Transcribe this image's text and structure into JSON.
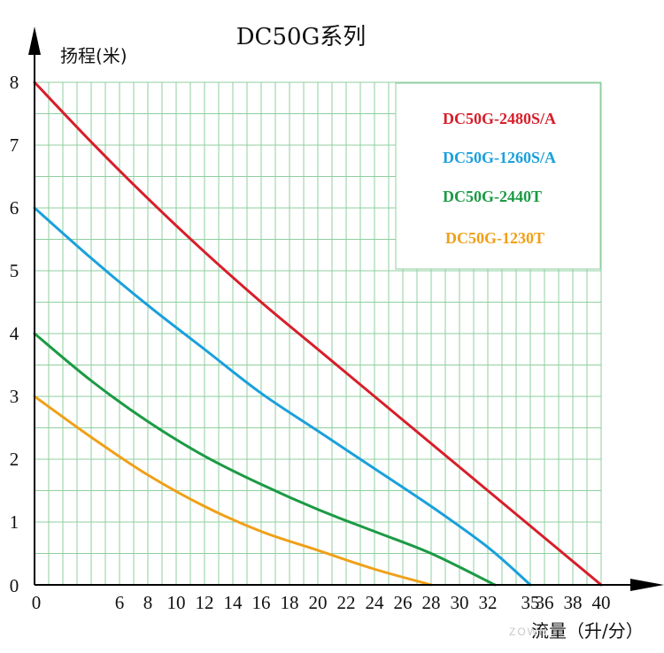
{
  "chart_data": {
    "type": "line",
    "title": "DC50G系列",
    "xlabel": "流量（升/分）",
    "ylabel": "扬程(米)",
    "xlim": [
      0,
      40
    ],
    "ylim": [
      0,
      8
    ],
    "xticks": [
      0,
      6,
      8,
      10,
      12,
      14,
      16,
      18,
      20,
      22,
      24,
      26,
      28,
      30,
      32,
      35,
      36,
      38,
      40
    ],
    "yticks": [
      0,
      1,
      2,
      3,
      4,
      5,
      6,
      7,
      8
    ],
    "grid": true,
    "legend_position": "top-right",
    "series": [
      {
        "name": "DC50G-2480S/A",
        "color": "#d81e2a",
        "x": [
          0,
          4,
          8,
          12,
          16,
          20,
          24,
          28,
          32,
          36,
          40
        ],
        "y": [
          8.0,
          7.05,
          6.15,
          5.3,
          4.5,
          3.75,
          3.0,
          2.25,
          1.5,
          0.75,
          0
        ]
      },
      {
        "name": "DC50G-1260S/A",
        "color": "#1aa0dc",
        "x": [
          0,
          4,
          8,
          12,
          16,
          20,
          24,
          28,
          32,
          35
        ],
        "y": [
          6.0,
          5.2,
          4.45,
          3.75,
          3.05,
          2.45,
          1.85,
          1.25,
          0.6,
          0
        ]
      },
      {
        "name": "DC50G-2440T",
        "color": "#1c9a45",
        "x": [
          0,
          4,
          8,
          12,
          16,
          20,
          24,
          28,
          32.5
        ],
        "y": [
          4.0,
          3.25,
          2.6,
          2.05,
          1.6,
          1.2,
          0.85,
          0.5,
          0
        ]
      },
      {
        "name": "DC50G-1230T",
        "color": "#f0a018",
        "x": [
          0,
          4,
          8,
          12,
          16,
          20,
          24,
          28
        ],
        "y": [
          3.0,
          2.35,
          1.75,
          1.25,
          0.85,
          0.55,
          0.25,
          0
        ]
      }
    ]
  },
  "watermark": "ZOWN"
}
